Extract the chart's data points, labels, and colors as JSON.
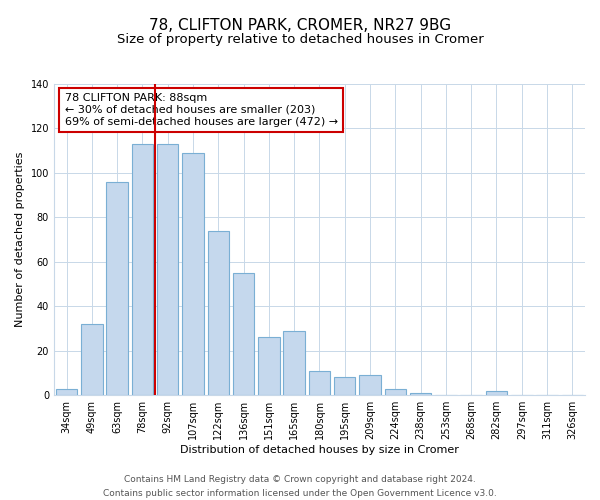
{
  "title": "78, CLIFTON PARK, CROMER, NR27 9BG",
  "subtitle": "Size of property relative to detached houses in Cromer",
  "xlabel": "Distribution of detached houses by size in Cromer",
  "ylabel": "Number of detached properties",
  "categories": [
    "34sqm",
    "49sqm",
    "63sqm",
    "78sqm",
    "92sqm",
    "107sqm",
    "122sqm",
    "136sqm",
    "151sqm",
    "165sqm",
    "180sqm",
    "195sqm",
    "209sqm",
    "224sqm",
    "238sqm",
    "253sqm",
    "268sqm",
    "282sqm",
    "297sqm",
    "311sqm",
    "326sqm"
  ],
  "values": [
    3,
    32,
    96,
    113,
    113,
    109,
    74,
    55,
    26,
    29,
    11,
    8,
    9,
    3,
    1,
    0,
    0,
    2,
    0,
    0,
    0
  ],
  "bar_color": "#c5d8ed",
  "bar_edge_color": "#7aafd4",
  "annotation_title": "78 CLIFTON PARK: 88sqm",
  "annotation_line1": "← 30% of detached houses are smaller (203)",
  "annotation_line2": "69% of semi-detached houses are larger (472) →",
  "annotation_box_edge": "#cc0000",
  "red_line_color": "#cc0000",
  "red_line_x": 3.5,
  "ylim": [
    0,
    140
  ],
  "yticks": [
    0,
    20,
    40,
    60,
    80,
    100,
    120,
    140
  ],
  "footer1": "Contains HM Land Registry data © Crown copyright and database right 2024.",
  "footer2": "Contains public sector information licensed under the Open Government Licence v3.0.",
  "title_fontsize": 11,
  "subtitle_fontsize": 9.5,
  "axis_label_fontsize": 8,
  "tick_fontsize": 7,
  "annotation_fontsize": 8,
  "footer_fontsize": 6.5
}
